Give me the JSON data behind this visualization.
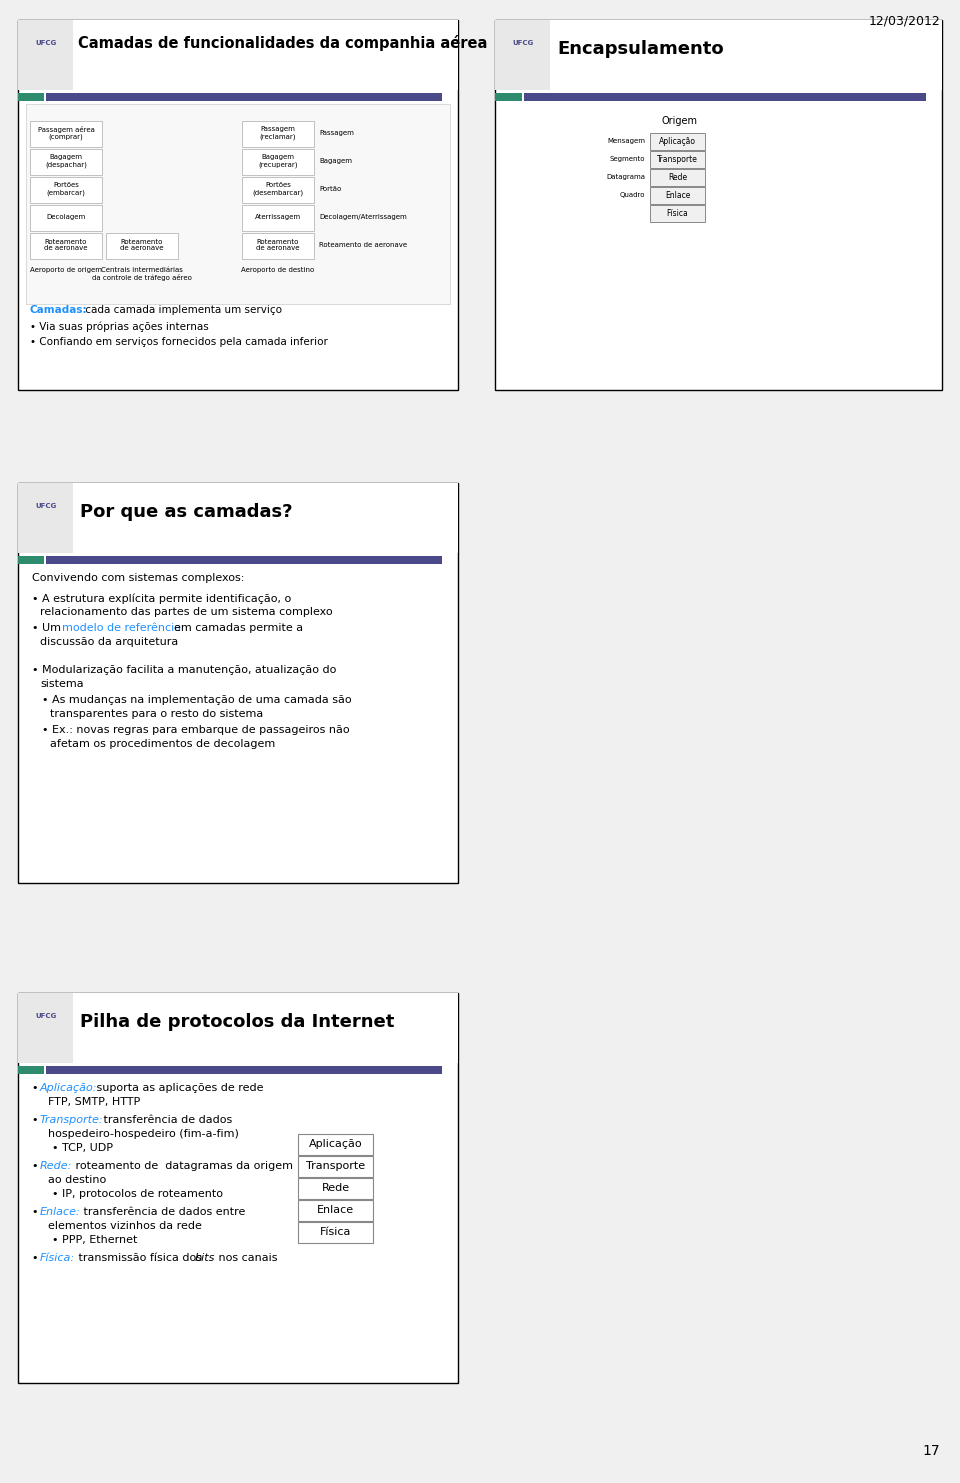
{
  "background_color": "#f0f0f0",
  "page_bg": "#ffffff",
  "date_text": "12/03/2012",
  "page_number": "17",
  "slide1": {
    "title": "Camadas de funcionalidades da companhia aérea",
    "title_color": "#000000",
    "header_bar_color1": "#4a4a8a",
    "header_bar_color2": "#2e8b6e",
    "body_bg": "#ffffff",
    "border_color": "#000000",
    "bullet_text": [
      "Camadas: cada camada implementa um serviço",
      "Via suas próprias ações internas",
      "Confiando em serviços fornecidos pela camada inferior"
    ],
    "bullet_colored_word": "Camadas:",
    "bullet_colored_color": "#1e90ff"
  },
  "slide2": {
    "title": "Encapsulamento",
    "title_color": "#000000",
    "header_bar_color1": "#4a4a8a",
    "header_bar_color2": "#2e8b6e",
    "body_bg": "#ffffff",
    "border_color": "#000000"
  },
  "slide3": {
    "title": "Por que as camadas?",
    "title_color": "#000000",
    "header_bar_color1": "#4a4a8a",
    "header_bar_color2": "#2e8b6e",
    "body_bg": "#ffffff",
    "border_color": "#000000",
    "intro_text": "Convivendo com sistemas complexos:",
    "bullet_lines": [
      "• A estrutura explícita permite identificação, o\n   relacionamento das partes de um sistema complexo",
      "• Um  modelo de referência  em camadas permite a\n   discussão da arquitetura",
      "",
      "• Modularização facilita a manutenção, atualização do\n   sistema",
      "   • As mudanças na implementação de uma camada são\n     transparentes para o resto do sistema",
      "   • Ex.: novas regras para embarque de passageiros não\n     afetam os procedimentos de decolagem"
    ],
    "highlight_text": "modelo de referência",
    "highlight_color": "#1e90ff"
  },
  "slide4": {
    "title": "Pilha de protocolos da Internet",
    "title_color": "#000000",
    "header_bar_color1": "#4a4a8a",
    "header_bar_color2": "#2e8b6e",
    "body_bg": "#ffffff",
    "border_color": "#000000",
    "layers": [
      "Aplicação",
      "Transporte",
      "Rede",
      "Enlace",
      "Física"
    ],
    "bullet_items": [
      {
        "label": "Aplicação:",
        "label_color": "#1e90ff",
        "text": " suporta as aplicações de rede\n  FTP, SMTP, HTTP"
      },
      {
        "label": "Transporte:",
        "label_color": "#1e90ff",
        "text": " transferência de dados\n  hospedeiro-hospedeiro (fim-a-fim)\n  • TCP, UDP"
      },
      {
        "label": "Rede:",
        "label_color": "#1e90ff",
        "text": " roteamento de  datagramas da origem\n  ao destino\n  • IP, protocolos de roteamento"
      },
      {
        "label": "Enlace:",
        "label_color": "#1e90ff",
        "text": " transferência de dados entre\n  elementos vizinhos da rede\n  • PPP, Ethernet"
      },
      {
        "label": "Física:",
        "label_color": "#1e90ff",
        "text": " transmissão física dos bits nos canais"
      }
    ]
  }
}
